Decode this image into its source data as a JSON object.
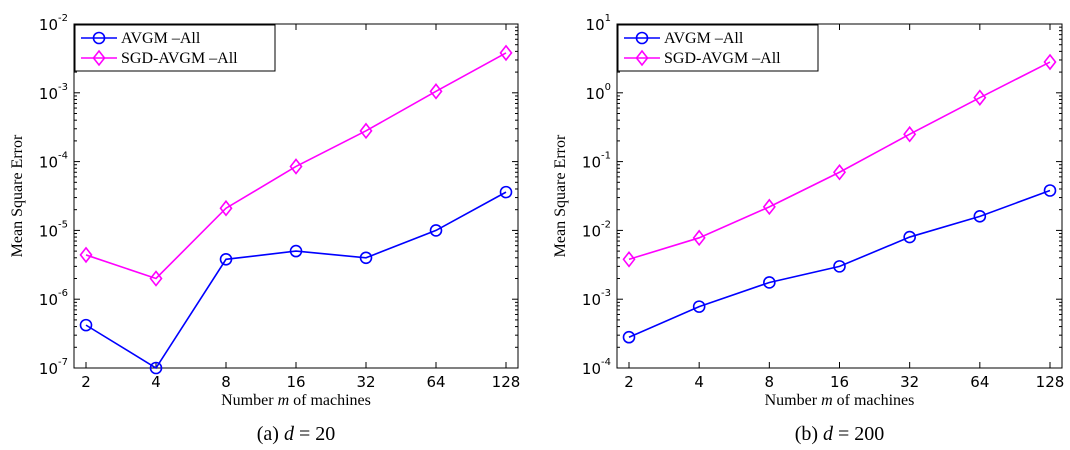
{
  "chart_data": [
    {
      "type": "line",
      "y_scale": "log",
      "categories": [
        "2",
        "4",
        "8",
        "16",
        "32",
        "64",
        "128"
      ],
      "ylim": [
        1e-07,
        0.01
      ],
      "y_ticks": [
        -7,
        -6,
        -5,
        -4,
        -3,
        -2
      ],
      "xlabel": {
        "pre": "Number ",
        "var": "m",
        "post": " of machines"
      },
      "ylabel": "Mean Square Error",
      "caption": {
        "pre": "(a) ",
        "var": "d",
        "post": " = 20"
      },
      "legend_position": "top-left",
      "series": [
        {
          "name": "AVGM –All",
          "color": "#0000ff",
          "marker": "circle",
          "values": [
            4.2e-07,
            1e-07,
            3.8e-06,
            5e-06,
            4e-06,
            1e-05,
            3.6e-05
          ]
        },
        {
          "name": "SGD-AVGM –All",
          "color": "#ff00ff",
          "marker": "diamond",
          "values": [
            4.4e-06,
            2e-06,
            2.1e-05,
            8.5e-05,
            0.00028,
            0.00105,
            0.0038
          ]
        }
      ]
    },
    {
      "type": "line",
      "y_scale": "log",
      "categories": [
        "2",
        "4",
        "8",
        "16",
        "32",
        "64",
        "128"
      ],
      "ylim": [
        0.0001,
        10
      ],
      "y_ticks": [
        -4,
        -3,
        -2,
        -1,
        0,
        1
      ],
      "xlabel": {
        "pre": "Number ",
        "var": "m",
        "post": " of machines"
      },
      "ylabel": "Mean Square Error",
      "caption": {
        "pre": "(b) ",
        "var": "d",
        "post": " = 200"
      },
      "legend_position": "top-left",
      "series": [
        {
          "name": "AVGM –All",
          "color": "#0000ff",
          "marker": "circle",
          "values": [
            0.00028,
            0.00078,
            0.00175,
            0.003,
            0.008,
            0.016,
            0.038
          ]
        },
        {
          "name": "SGD-AVGM –All",
          "color": "#ff00ff",
          "marker": "diamond",
          "values": [
            0.0038,
            0.0078,
            0.022,
            0.07,
            0.25,
            0.85,
            2.8
          ]
        }
      ]
    }
  ]
}
